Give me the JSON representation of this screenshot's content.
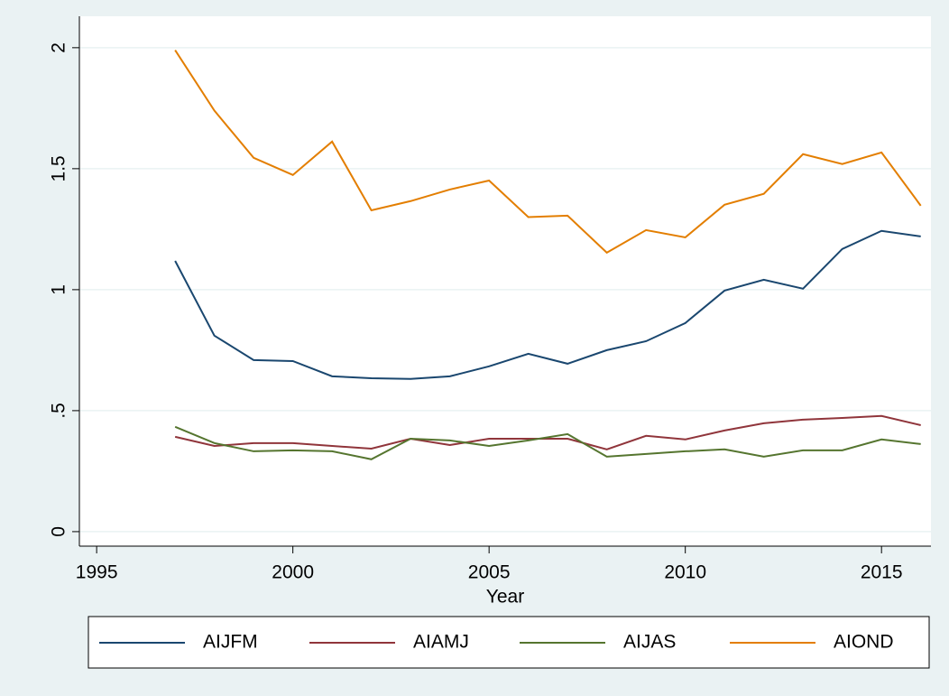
{
  "chart_data": {
    "type": "line",
    "x_label": "Year",
    "x": [
      1997,
      1998,
      1999,
      2000,
      2001,
      2002,
      2003,
      2004,
      2005,
      2006,
      2007,
      2008,
      2009,
      2010,
      2011,
      2012,
      2013,
      2014,
      2015,
      2016
    ],
    "series": [
      {
        "name": "AIJFM",
        "color": "#1a476f",
        "values": [
          1.119,
          0.81,
          0.709,
          0.705,
          0.642,
          0.634,
          0.631,
          0.642,
          0.683,
          0.735,
          0.694,
          0.75,
          0.787,
          0.862,
          0.996,
          1.041,
          1.004,
          1.168,
          1.243,
          1.22
        ]
      },
      {
        "name": "AIAMJ",
        "color": "#90353b",
        "values": [
          0.392,
          0.354,
          0.366,
          0.366,
          0.354,
          0.343,
          0.384,
          0.358,
          0.384,
          0.384,
          0.384,
          0.34,
          0.396,
          0.381,
          0.418,
          0.448,
          0.463,
          0.47,
          0.478,
          0.44
        ]
      },
      {
        "name": "AIJAS",
        "color": "#55752f",
        "values": [
          0.433,
          0.366,
          0.332,
          0.336,
          0.332,
          0.299,
          0.384,
          0.377,
          0.354,
          0.377,
          0.403,
          0.31,
          0.321,
          0.332,
          0.34,
          0.31,
          0.336,
          0.336,
          0.381,
          0.362
        ]
      },
      {
        "name": "AIOND",
        "color": "#e37e00",
        "values": [
          1.99,
          1.74,
          1.545,
          1.474,
          1.612,
          1.328,
          1.366,
          1.414,
          1.451,
          1.3,
          1.306,
          1.153,
          1.246,
          1.216,
          1.351,
          1.396,
          1.56,
          1.519,
          1.567,
          1.347
        ]
      }
    ],
    "xlim": [
      1994.56,
      2016.26
    ],
    "xticks": [
      1995,
      2000,
      2005,
      2010,
      2015
    ],
    "ylim": [
      -0.06,
      2.13
    ],
    "yticks": [
      0,
      {
        "value": 0.5,
        "label": ".5"
      },
      1,
      1.5,
      2
    ],
    "grid": true,
    "legend": "bottom"
  }
}
